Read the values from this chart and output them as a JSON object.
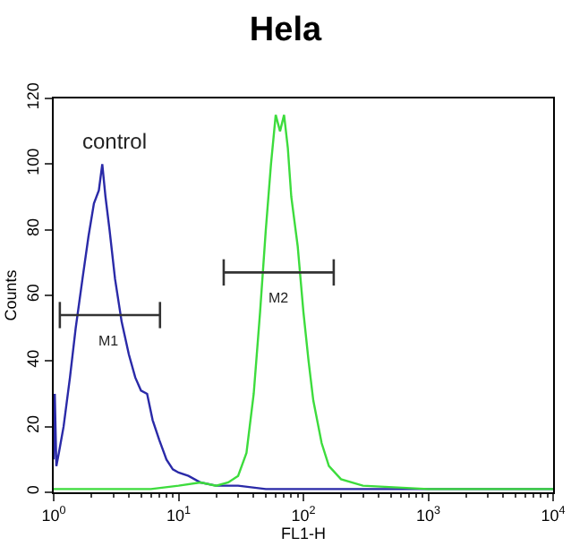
{
  "chart_data": {
    "type": "line",
    "title": "Hela",
    "xlabel": "FL1-H",
    "ylabel": "Counts",
    "log": "x",
    "xlim": [
      1,
      10000
    ],
    "xticks": [
      {
        "value": 1,
        "label": "10$^{0}$"
      },
      {
        "value": 10,
        "label": "10$^{1}$"
      },
      {
        "value": 100,
        "label": "10$^{2}$"
      },
      {
        "value": 1000,
        "label": "10$^{3}$"
      },
      {
        "value": 10000,
        "label": "10$^{4}$"
      }
    ],
    "ylim": [
      0,
      120
    ],
    "yticks": [
      0,
      20,
      40,
      60,
      80,
      100,
      120
    ],
    "grid": false,
    "legend": false,
    "series": [
      {
        "color": "#2a2aa8",
        "x": [
          1.0,
          1.02,
          1.05,
          1.1,
          1.2,
          1.35,
          1.5,
          1.7,
          1.9,
          2.1,
          2.3,
          2.45,
          2.6,
          2.8,
          3.1,
          3.5,
          4,
          4.5,
          5,
          5.6,
          6.2,
          7,
          8,
          9,
          10,
          12,
          15,
          20,
          30,
          50,
          100,
          200,
          1000,
          10000
        ],
        "values": [
          10,
          30,
          8,
          12,
          20,
          35,
          50,
          65,
          78,
          88,
          92,
          100,
          90,
          80,
          65,
          52,
          42,
          35,
          31,
          30,
          22,
          16,
          10,
          7,
          6,
          5,
          3,
          2,
          2,
          1,
          1,
          1,
          1,
          1
        ]
      },
      {
        "color": "#3ddc3d",
        "x": [
          1,
          3,
          6,
          10,
          15,
          20,
          25,
          30,
          35,
          40,
          45,
          50,
          55,
          60,
          65,
          70,
          75,
          80,
          90,
          100,
          110,
          120,
          140,
          160,
          200,
          300,
          1000,
          10000
        ],
        "values": [
          1,
          1,
          1,
          2,
          3,
          2,
          3,
          5,
          12,
          30,
          55,
          80,
          100,
          115,
          110,
          115,
          105,
          90,
          75,
          55,
          40,
          28,
          15,
          8,
          4,
          2,
          1,
          1
        ]
      },
      {
        "name": "M1",
        "color": "#333333",
        "x": [
          1.12,
          7.1
        ],
        "values": [
          54,
          54
        ],
        "errors": [
          4,
          4
        ]
      },
      {
        "name": "M2",
        "color": "#333333",
        "x": [
          23,
          175
        ],
        "values": [
          67,
          67
        ],
        "errors": [
          4,
          4
        ]
      }
    ],
    "annotations": [
      "control"
    ]
  }
}
